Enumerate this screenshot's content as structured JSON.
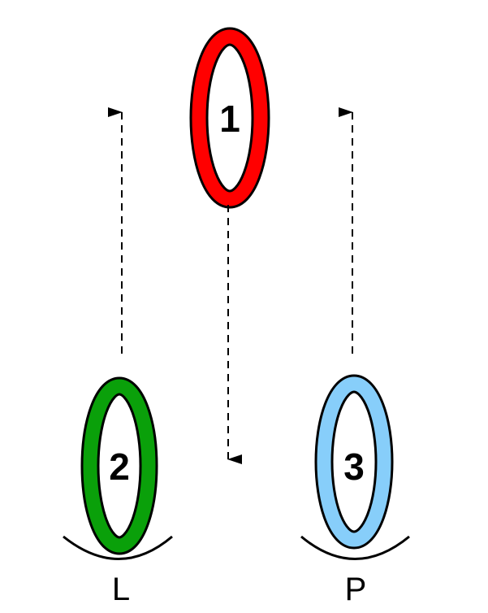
{
  "rings": [
    {
      "id": "1",
      "label": "1",
      "color": "#ff0000"
    },
    {
      "id": "2",
      "label": "2",
      "color": "#0aa00a"
    },
    {
      "id": "3",
      "label": "3",
      "color": "#87cefa"
    }
  ],
  "sites": [
    {
      "id": "L",
      "label": "L"
    },
    {
      "id": "P",
      "label": "P"
    }
  ],
  "arrows": [
    {
      "from": "2",
      "to": "1",
      "style": "dashed"
    },
    {
      "from": "1",
      "to": "between-2-3",
      "style": "dashed"
    },
    {
      "from": "3",
      "to": "1",
      "style": "dashed"
    }
  ]
}
